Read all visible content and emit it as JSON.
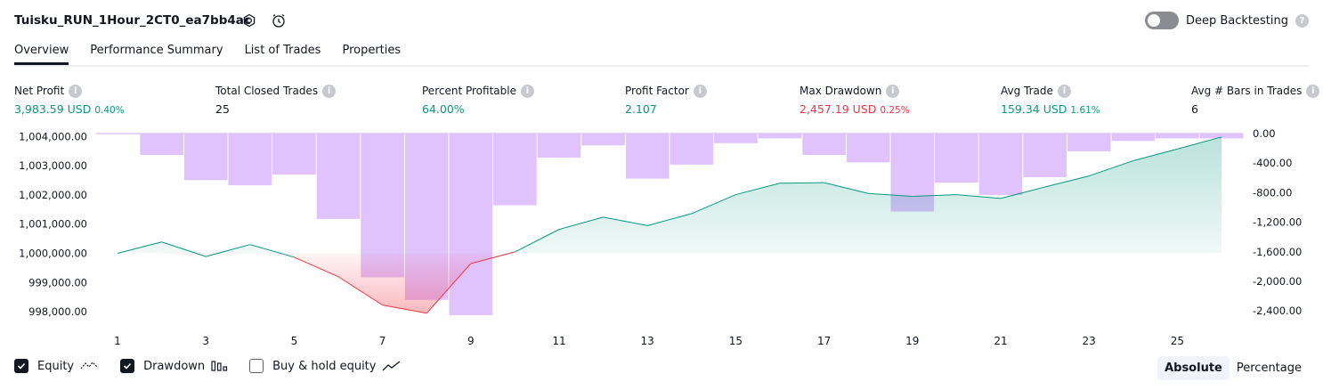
{
  "header": {
    "title": "Tuisku_RUN_1Hour_2CT0_ea7bb4ac",
    "deep_backtesting_label": "Deep Backtesting",
    "deep_backtesting_on": false
  },
  "tabs": [
    {
      "label": "Overview",
      "active": true
    },
    {
      "label": "Performance Summary",
      "active": false
    },
    {
      "label": "List of Trades",
      "active": false
    },
    {
      "label": "Properties",
      "active": false
    }
  ],
  "metrics": [
    {
      "label": "Net Profit",
      "value": "3,983.59 USD",
      "pct": "0.40%",
      "color": "#089981"
    },
    {
      "label": "Total Closed Trades",
      "value": "25",
      "pct": "",
      "color": "#131722"
    },
    {
      "label": "Percent Profitable",
      "value": "64.00%",
      "pct": "",
      "color": "#089981"
    },
    {
      "label": "Profit Factor",
      "value": "2.107",
      "pct": "",
      "color": "#089981"
    },
    {
      "label": "Max Drawdown",
      "value": "2,457.19 USD",
      "pct": "0.25%",
      "color": "#f23645"
    },
    {
      "label": "Avg Trade",
      "value": "159.34 USD",
      "pct": "1.61%",
      "color": "#089981"
    },
    {
      "label": "Avg # Bars in Trades",
      "value": "6",
      "pct": "",
      "color": "#131722"
    }
  ],
  "chart_data": {
    "type": "line",
    "x": [
      1,
      2,
      3,
      4,
      5,
      6,
      7,
      8,
      9,
      10,
      11,
      12,
      13,
      14,
      15,
      16,
      17,
      18,
      19,
      20,
      21,
      22,
      23,
      24,
      25,
      26
    ],
    "x_ticks": [
      "1",
      "3",
      "5",
      "7",
      "9",
      "11",
      "13",
      "15",
      "17",
      "19",
      "21",
      "23",
      "25"
    ],
    "left_axis_ticks": [
      "1,004,000.00",
      "1,003,000.00",
      "1,002,000.00",
      "1,001,000.00",
      "1,000,000.00",
      "999,000.00",
      "998,000.00"
    ],
    "right_axis_ticks": [
      "0.00",
      "-400.00",
      "-800.00",
      "-1,200.00",
      "-1,600.00",
      "-2,000.00",
      "-2,400.00"
    ],
    "left_ylim": [
      997700,
      1004100
    ],
    "right_ylim": [
      -2530,
      0
    ],
    "series": [
      {
        "name": "Equity",
        "axis": "left",
        "color": "#089981",
        "values": [
          1000000,
          1000390,
          999890,
          1000300,
          999870,
          999200,
          998230,
          997950,
          999650,
          1000050,
          1000820,
          1001240,
          1000950,
          1001360,
          1002010,
          1002400,
          1002420,
          1002050,
          1001950,
          1002010,
          1001880,
          1002270,
          1002650,
          1003170,
          1003570,
          1003984
        ]
      },
      {
        "name": "Drawdown",
        "axis": "right",
        "color": "#e0c3fd",
        "values": [
          0,
          -290,
          -630,
          -700,
          -555,
          -1155,
          -1945,
          -2250,
          -2457,
          -970,
          -325,
          -160,
          -610,
          -420,
          -130,
          -65,
          -290,
          -390,
          -1055,
          -665,
          -830,
          -590,
          -240,
          -100,
          -65,
          -65
        ]
      }
    ],
    "legend": [
      {
        "label": "Equity",
        "checked": true,
        "icon": "equity-line-icon"
      },
      {
        "label": "Drawdown",
        "checked": true,
        "icon": "drawdown-bars-icon"
      },
      {
        "label": "Buy & hold equity",
        "checked": false,
        "icon": "buy-hold-line-icon"
      }
    ],
    "grid": false
  },
  "view_modes": {
    "absolute": "Absolute",
    "percentage": "Percentage",
    "selected": "Absolute"
  }
}
